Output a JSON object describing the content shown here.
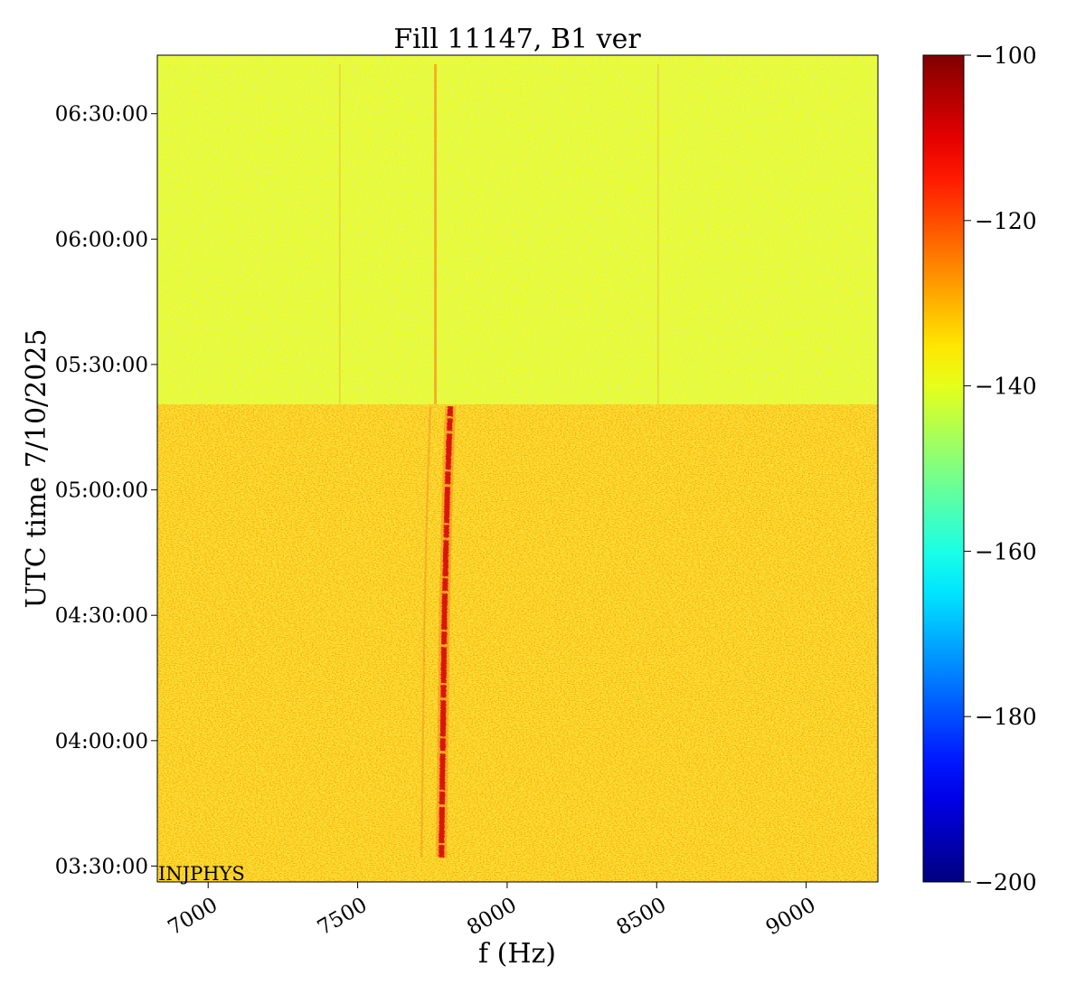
{
  "chart_data": {
    "type": "heatmap",
    "title": "Fill 11147, B1 ver",
    "xlabel": "f (Hz)",
    "ylabel": "UTC time 7/10/2025",
    "xlim": [
      6830,
      9240
    ],
    "x_ticks": [
      "7000",
      "7500",
      "8000",
      "8500",
      "9000"
    ],
    "x_tick_values": [
      7000,
      7500,
      8000,
      8500,
      9000
    ],
    "y_ticks": [
      "03:30:00",
      "04:00:00",
      "04:30:00",
      "05:00:00",
      "05:30:00",
      "06:00:00",
      "06:30:00"
    ],
    "y_tick_values_minutes": [
      210,
      240,
      270,
      300,
      330,
      360,
      390
    ],
    "ylim_minutes": [
      206.2,
      404
    ],
    "colorbar": {
      "ticks": [
        "−100",
        "−120",
        "−140",
        "−160",
        "−180",
        "−200"
      ],
      "tick_values": [
        -100,
        -120,
        -140,
        -160,
        -180,
        -200
      ],
      "vmin": -200,
      "vmax": -100,
      "colormap": "jet"
    },
    "regions": [
      {
        "time_start_min": 206.2,
        "time_end_min": 320.5,
        "typical_level": -129,
        "note_hidden": false
      },
      {
        "time_start_min": 320.5,
        "time_end_min": 404,
        "typical_level": -138,
        "note_hidden": false
      }
    ],
    "tune_line": {
      "color_level": -110,
      "points": [
        {
          "time_min": 212,
          "f_hz": 7780
        },
        {
          "time_min": 240,
          "f_hz": 7785
        },
        {
          "time_min": 270,
          "f_hz": 7790
        },
        {
          "time_min": 300,
          "f_hz": 7800
        },
        {
          "time_min": 320,
          "f_hz": 7810
        }
      ]
    },
    "faint_lines_hz": [
      7440,
      7760,
      8505
    ],
    "annotation": "INJPHYS"
  },
  "colors": {
    "line": "#d9140e",
    "lower_band_base": "#f2bd24",
    "upper_band_base": "#cdf02d"
  }
}
